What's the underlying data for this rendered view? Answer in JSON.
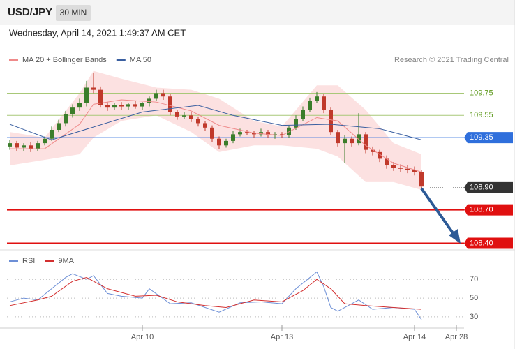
{
  "header": {
    "symbol": "USD/JPY",
    "timeframe": "30 MIN",
    "timestamp": "Wednesday, April 14, 2021 1:49:37 AM CET",
    "copyright": "Research © 2021 Trading Central"
  },
  "chart_data": [
    {
      "type": "candlestick",
      "up_color": "#3b7d2b",
      "down_color": "#c0392b",
      "open": [
        109.27,
        109.3,
        109.26,
        109.28,
        109.25,
        109.3,
        109.34,
        109.42,
        109.48,
        109.56,
        109.62,
        109.66,
        109.8,
        109.78,
        109.64,
        109.62,
        109.64,
        109.63,
        109.65,
        109.63,
        109.66,
        109.7,
        109.75,
        109.72,
        109.58,
        109.54,
        109.55,
        109.52,
        109.48,
        109.44,
        109.34,
        109.28,
        109.32,
        109.38,
        109.4,
        109.39,
        109.38,
        109.4,
        109.37,
        109.38,
        109.37,
        109.44,
        109.52,
        109.6,
        109.68,
        109.72,
        109.6,
        109.4,
        109.3,
        109.34,
        109.3,
        109.38,
        109.24,
        109.22,
        109.16,
        109.1,
        109.08,
        109.07,
        109.06,
        109.04
      ],
      "high": [
        109.33,
        109.32,
        109.3,
        109.31,
        109.32,
        109.36,
        109.45,
        109.51,
        109.59,
        109.65,
        109.7,
        109.86,
        109.93,
        109.81,
        109.67,
        109.66,
        109.67,
        109.66,
        109.68,
        109.67,
        109.72,
        109.78,
        109.78,
        109.74,
        109.6,
        109.58,
        109.58,
        109.54,
        109.5,
        109.46,
        109.36,
        109.34,
        109.41,
        109.43,
        109.42,
        109.41,
        109.43,
        109.42,
        109.4,
        109.4,
        109.46,
        109.55,
        109.63,
        109.71,
        109.76,
        109.74,
        109.62,
        109.42,
        109.37,
        109.36,
        109.57,
        109.4,
        109.27,
        109.24,
        109.19,
        109.13,
        109.11,
        109.1,
        109.09,
        109.06
      ],
      "low": [
        109.24,
        109.23,
        109.23,
        109.22,
        109.23,
        109.28,
        109.32,
        109.4,
        109.45,
        109.53,
        109.59,
        109.63,
        109.75,
        109.62,
        109.59,
        109.6,
        109.6,
        109.6,
        109.61,
        109.6,
        109.63,
        109.68,
        109.69,
        109.55,
        109.51,
        109.52,
        109.49,
        109.45,
        109.41,
        109.31,
        109.25,
        109.26,
        109.3,
        109.36,
        109.37,
        109.35,
        109.36,
        109.35,
        109.34,
        109.35,
        109.35,
        109.42,
        109.5,
        109.58,
        109.66,
        109.57,
        109.37,
        109.27,
        109.12,
        109.27,
        109.28,
        109.21,
        109.19,
        109.13,
        109.07,
        109.05,
        109.04,
        109.03,
        109.01,
        108.89
      ],
      "close": [
        109.3,
        109.26,
        109.28,
        109.25,
        109.3,
        109.34,
        109.42,
        109.48,
        109.56,
        109.62,
        109.66,
        109.8,
        109.78,
        109.64,
        109.62,
        109.64,
        109.63,
        109.65,
        109.63,
        109.66,
        109.7,
        109.75,
        109.72,
        109.58,
        109.54,
        109.55,
        109.52,
        109.48,
        109.44,
        109.34,
        109.28,
        109.32,
        109.38,
        109.4,
        109.39,
        109.38,
        109.4,
        109.37,
        109.38,
        109.37,
        109.44,
        109.52,
        109.6,
        109.68,
        109.72,
        109.6,
        109.4,
        109.3,
        109.34,
        109.3,
        109.38,
        109.24,
        109.22,
        109.16,
        109.1,
        109.08,
        109.07,
        109.06,
        109.04,
        108.91
      ],
      "series": [
        {
          "name": "MA 20 + Bollinger Bands",
          "color": "#ef8a8a",
          "band_color": "#fbdada",
          "x": [
            0,
            5,
            10,
            12,
            16,
            21,
            26,
            30,
            35,
            39,
            44,
            47,
            51,
            55,
            59
          ],
          "values": [
            109.25,
            109.25,
            109.47,
            109.65,
            109.69,
            109.67,
            109.59,
            109.46,
            109.39,
            109.37,
            109.53,
            109.5,
            109.28,
            109.12,
            109.04
          ],
          "upper": [
            109.4,
            109.35,
            109.75,
            109.95,
            109.88,
            109.8,
            109.78,
            109.7,
            109.5,
            109.45,
            109.82,
            109.82,
            109.6,
            109.3,
            109.2
          ],
          "lower": [
            109.1,
            109.15,
            109.2,
            109.35,
            109.5,
            109.55,
            109.4,
            109.22,
            109.28,
            109.28,
            109.25,
            109.18,
            108.95,
            108.95,
            108.88
          ]
        },
        {
          "name": "MA 50",
          "color": "#3a5fa0",
          "x": [
            0,
            6,
            19,
            27,
            32,
            39,
            46,
            53,
            59
          ],
          "values": [
            109.47,
            109.33,
            109.58,
            109.64,
            109.55,
            109.46,
            109.47,
            109.43,
            109.33
          ]
        }
      ],
      "levels": [
        {
          "value": 109.75,
          "label": "109.75",
          "color": "#a8c878",
          "style": "text"
        },
        {
          "value": 109.55,
          "label": "109.55",
          "color": "#a8c878",
          "style": "text"
        },
        {
          "value": 109.35,
          "label": "109.35",
          "color": "#2f6fdc",
          "style": "box"
        },
        {
          "value": 108.9,
          "label": "108.90",
          "color": "#333333",
          "style": "dotted"
        },
        {
          "value": 108.7,
          "label": "108.70",
          "color": "#e01010",
          "style": "box"
        },
        {
          "value": 108.4,
          "label": "108.40",
          "color": "#e01010",
          "style": "box"
        }
      ],
      "xlim": [
        -0.2,
        64.3
      ],
      "ylim": [
        108.34,
        109.96
      ]
    },
    {
      "type": "line",
      "series": [
        {
          "name": "RSI",
          "color": "#6d8fd6",
          "x": [
            0,
            2,
            4,
            6,
            8,
            9,
            11,
            12,
            14,
            16,
            19,
            20,
            23,
            26,
            30,
            33,
            36,
            39,
            41,
            43,
            44,
            45,
            46,
            47,
            50,
            52,
            55,
            58,
            59
          ],
          "values": [
            46,
            50,
            48,
            60,
            72,
            76,
            70,
            74,
            55,
            52,
            50,
            60,
            44,
            45,
            35,
            45,
            46,
            44,
            60,
            72,
            78,
            62,
            40,
            36,
            48,
            38,
            40,
            38,
            27
          ]
        },
        {
          "name": "9MA",
          "color": "#d32f2f",
          "x": [
            0,
            4,
            6,
            9,
            11,
            14,
            18,
            21,
            24,
            28,
            31,
            35,
            39,
            42,
            44,
            46,
            48,
            51,
            55,
            59
          ],
          "values": [
            42,
            48,
            52,
            68,
            72,
            60,
            52,
            53,
            46,
            42,
            40,
            48,
            46,
            58,
            70,
            60,
            44,
            42,
            40,
            38
          ]
        }
      ],
      "xlim": [
        -0.2,
        64.3
      ],
      "ylim": [
        18,
        100
      ],
      "yticks": [
        30,
        50,
        70
      ],
      "xticks": [
        {
          "value": 19,
          "label": "Apr 10"
        },
        {
          "value": 39,
          "label": "Apr 13"
        },
        {
          "value": 58,
          "label": "Apr 14"
        },
        {
          "value": 64,
          "label": "Apr 28"
        }
      ]
    }
  ]
}
